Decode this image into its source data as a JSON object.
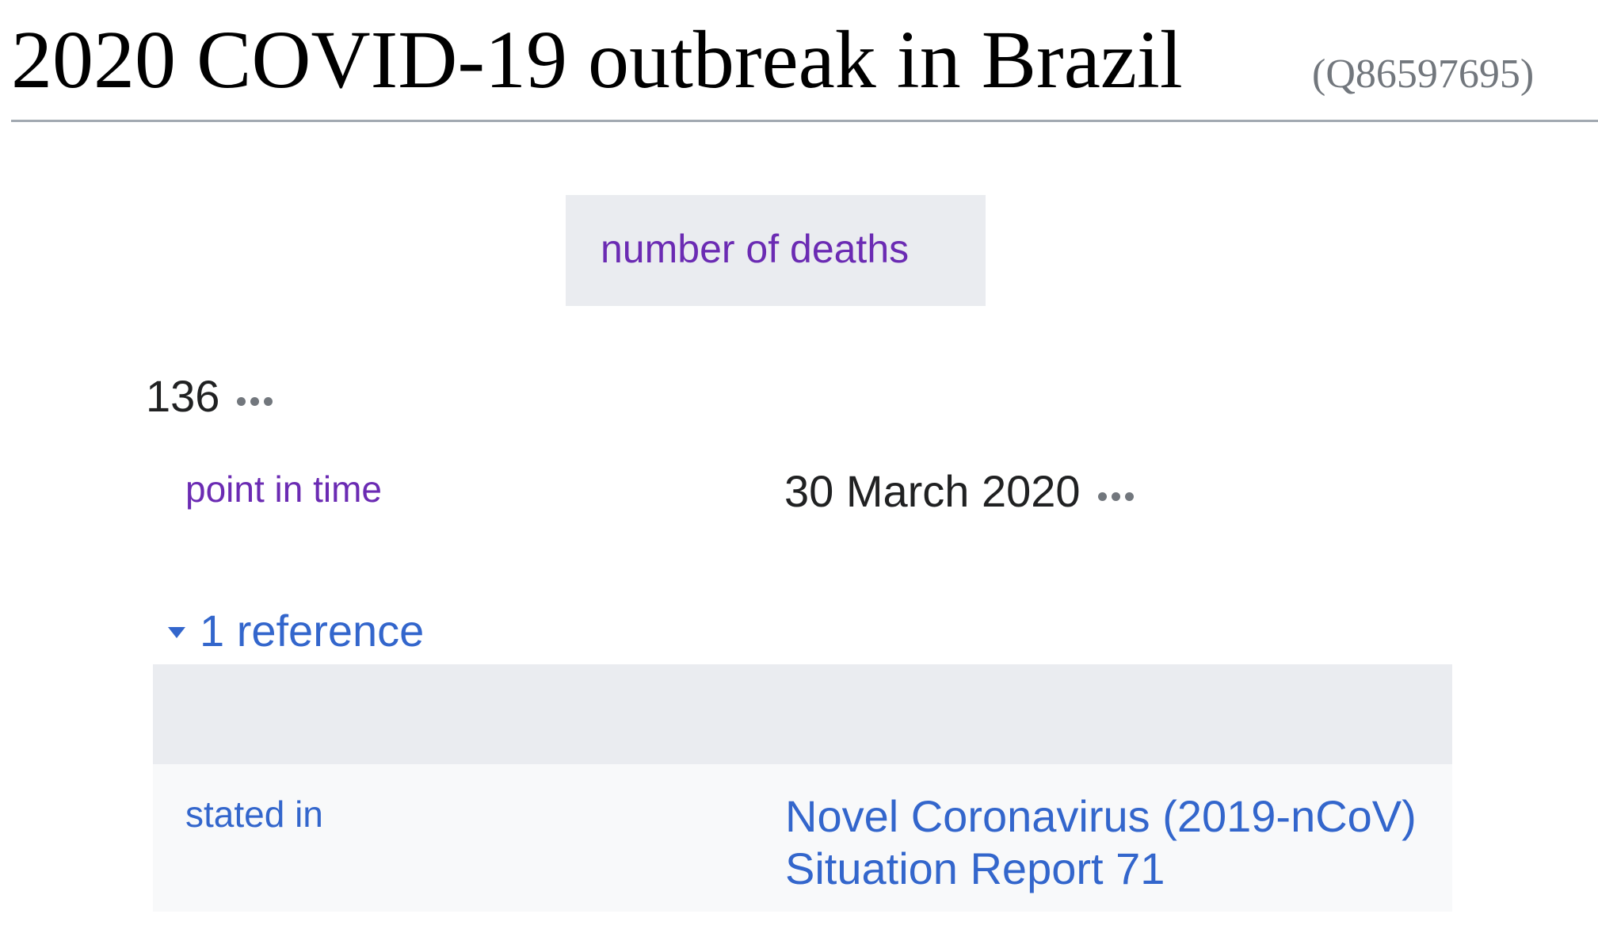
{
  "heading": {
    "label": "2020 COVID-19 outbreak in Brazil",
    "id": "(Q86597695)"
  },
  "statement": {
    "property_label": "number of deaths",
    "value": "136",
    "qualifier": {
      "property_label": "point in time",
      "value": "30 March 2020"
    },
    "references": {
      "toggle_label": "1 reference",
      "items": [
        {
          "property_label": "stated in",
          "value_line1": "Novel Coronavirus (2019-nCoV)",
          "value_line2": "Situation Report 71"
        }
      ]
    }
  },
  "colors": {
    "property_link": "#6b2bb3",
    "link": "#3366cc",
    "text": "#202122",
    "muted": "#72777d",
    "panel": "#eaecf0",
    "panel_light": "#f8f9fa"
  },
  "icons": {
    "more_options": "ellipsis-icon",
    "toggle": "triangle-down-icon"
  }
}
